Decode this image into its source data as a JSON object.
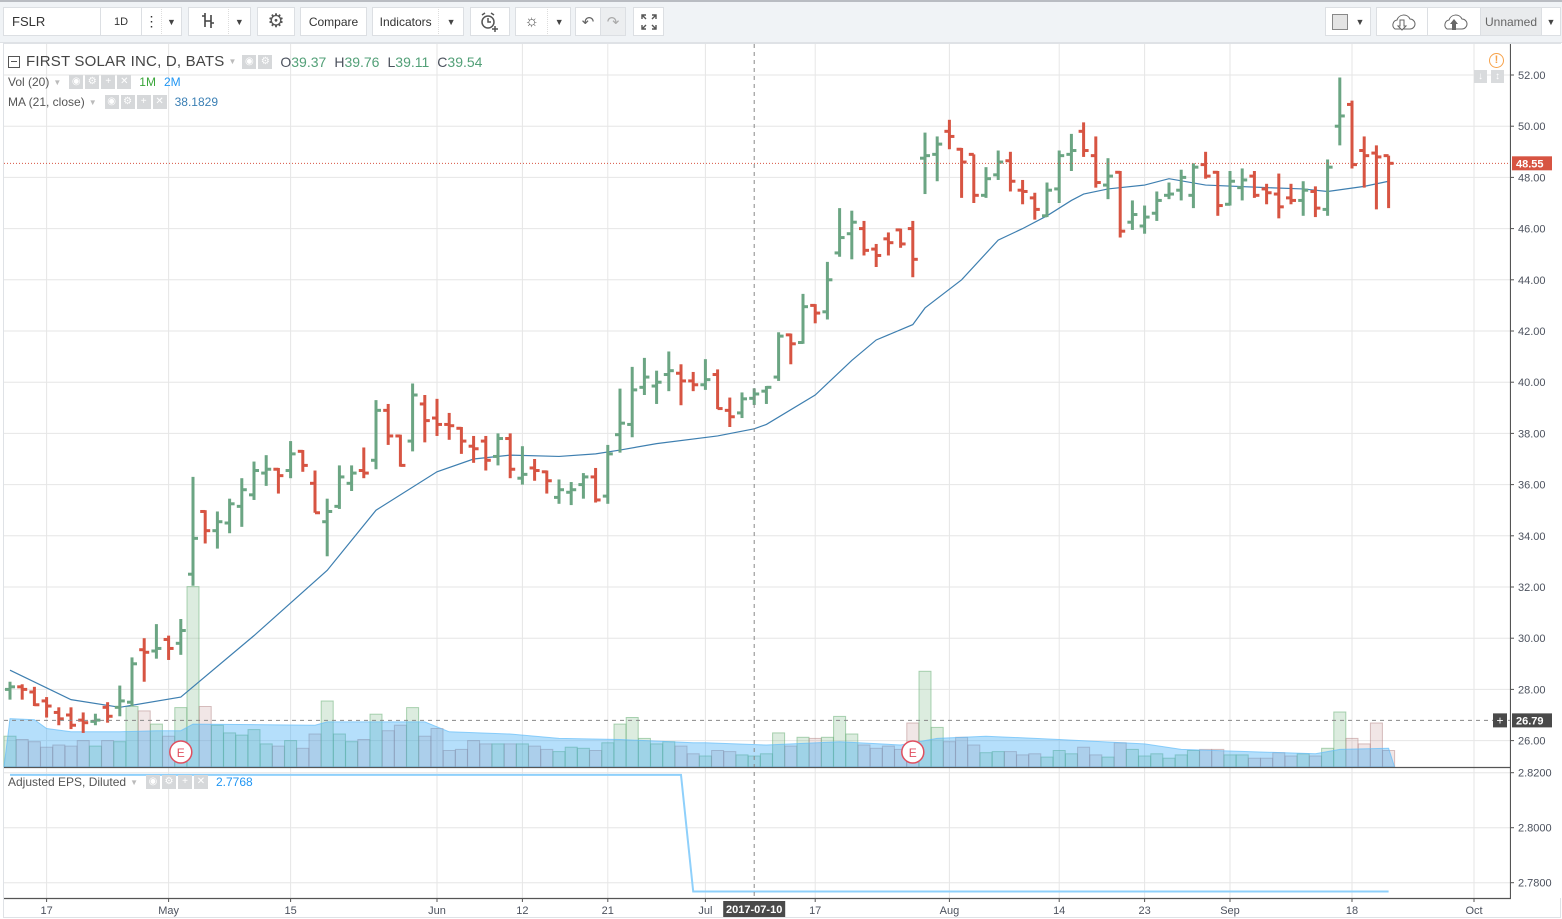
{
  "toolbar": {
    "symbol": "FSLR",
    "interval": "1D",
    "compare_label": "Compare",
    "indicators_label": "Indicators",
    "layout_name": "Unnamed",
    "icons": [
      "more-dots-icon",
      "bar-style-icon",
      "gear-icon",
      "alarm-add-icon",
      "lightbulb-icon",
      "undo-icon",
      "redo-icon",
      "fullscreen-icon",
      "color-square-icon",
      "cloud-download-icon",
      "cloud-upload-icon"
    ]
  },
  "legend": {
    "title": "FIRST SOLAR INC, D, BATS",
    "ohlc": [
      {
        "key": "O",
        "value": "39.37"
      },
      {
        "key": "H",
        "value": "39.76"
      },
      {
        "key": "L",
        "value": "39.11"
      },
      {
        "key": "C",
        "value": "39.54"
      }
    ],
    "volume": {
      "label": "Vol (20)",
      "value": "1M",
      "ma_value": "2M"
    },
    "ma": {
      "label": "MA (21, close)",
      "value": "38.1829"
    },
    "eps": {
      "label": "Adjusted EPS, Diluted",
      "value": "2.7768"
    }
  },
  "colors": {
    "up": "#6ba583",
    "down": "#d75442",
    "ma_line": "#3e7fb0",
    "volume_ma_area": "#58b4f2",
    "eps_line": "#8fd0fb",
    "earnings_marker": "#e04f5f",
    "warning": "#f7a24a"
  },
  "chart_data": {
    "type": "ohlc-bar",
    "symbol": "FSLR",
    "bar_fields": [
      "date",
      "open",
      "high",
      "low",
      "close",
      "volume_millions"
    ],
    "bars": [
      [
        "2017-04-11",
        28.0,
        28.3,
        27.6,
        28.1,
        2.8
      ],
      [
        "2017-04-12",
        28.1,
        28.2,
        27.6,
        28.0,
        2.5
      ],
      [
        "2017-04-13",
        27.9,
        28.1,
        27.35,
        27.4,
        2.3
      ],
      [
        "2017-04-17",
        27.55,
        27.7,
        26.9,
        27.35,
        1.8
      ],
      [
        "2017-04-18",
        27.1,
        27.3,
        26.6,
        26.85,
        2.0
      ],
      [
        "2017-04-19",
        27.0,
        27.3,
        26.45,
        26.6,
        1.9
      ],
      [
        "2017-04-20",
        26.8,
        27.1,
        26.3,
        26.7,
        2.4
      ],
      [
        "2017-04-21",
        26.75,
        27.05,
        26.6,
        26.8,
        1.9
      ],
      [
        "2017-04-24",
        27.3,
        27.5,
        26.7,
        26.95,
        2.4
      ],
      [
        "2017-04-25",
        27.3,
        28.15,
        26.95,
        27.55,
        2.3
      ],
      [
        "2017-04-26",
        27.5,
        29.25,
        27.35,
        29.0,
        5.5
      ],
      [
        "2017-04-27",
        29.55,
        30.0,
        28.3,
        29.45,
        5.1
      ],
      [
        "2017-04-28",
        29.5,
        30.55,
        29.2,
        29.6,
        3.9
      ],
      [
        "2017-05-01",
        29.95,
        30.1,
        29.15,
        29.6,
        2.8
      ],
      [
        "2017-05-02",
        29.8,
        30.75,
        29.35,
        30.3,
        5.4
      ],
      [
        "2017-05-03",
        32.5,
        36.3,
        32.05,
        33.9,
        16.4
      ],
      [
        "2017-05-04",
        34.95,
        35.0,
        33.7,
        34.2,
        5.5
      ],
      [
        "2017-05-05",
        34.2,
        34.95,
        33.5,
        34.55,
        3.8
      ],
      [
        "2017-05-08",
        34.5,
        35.45,
        34.1,
        35.25,
        3.1
      ],
      [
        "2017-05-09",
        35.15,
        36.25,
        34.35,
        35.8,
        2.9
      ],
      [
        "2017-05-10",
        35.6,
        36.9,
        35.4,
        36.55,
        3.4
      ],
      [
        "2017-05-11",
        36.45,
        37.15,
        35.95,
        36.6,
        2.1
      ],
      [
        "2017-05-12",
        36.6,
        36.65,
        35.65,
        36.35,
        1.9
      ],
      [
        "2017-05-15",
        36.55,
        37.7,
        36.25,
        37.2,
        2.4
      ],
      [
        "2017-05-16",
        37.3,
        37.35,
        36.5,
        36.75,
        1.7
      ],
      [
        "2017-05-17",
        36.05,
        36.55,
        34.9,
        34.9,
        3.0
      ],
      [
        "2017-05-18",
        34.55,
        35.45,
        33.2,
        34.95,
        6.0
      ],
      [
        "2017-05-19",
        35.15,
        36.75,
        35.05,
        36.3,
        3.0
      ],
      [
        "2017-05-22",
        36.05,
        36.75,
        35.75,
        36.45,
        2.3
      ],
      [
        "2017-05-23",
        36.55,
        37.45,
        36.25,
        36.45,
        2.5
      ],
      [
        "2017-05-24",
        36.95,
        39.3,
        36.6,
        38.9,
        4.8
      ],
      [
        "2017-05-25",
        38.9,
        39.15,
        37.55,
        37.9,
        3.3
      ],
      [
        "2017-05-26",
        37.9,
        37.95,
        36.7,
        36.75,
        3.8
      ],
      [
        "2017-05-30",
        37.7,
        39.95,
        37.3,
        39.5,
        5.4
      ],
      [
        "2017-05-31",
        39.15,
        39.5,
        37.65,
        38.5,
        2.8
      ],
      [
        "2017-06-01",
        38.6,
        39.35,
        37.9,
        38.35,
        3.5
      ],
      [
        "2017-06-02",
        38.35,
        38.8,
        37.75,
        38.3,
        1.5
      ],
      [
        "2017-06-05",
        38.2,
        38.25,
        37.2,
        37.7,
        1.6
      ],
      [
        "2017-06-06",
        37.5,
        37.9,
        36.85,
        37.4,
        2.4
      ],
      [
        "2017-06-07",
        37.7,
        37.9,
        36.55,
        36.95,
        2.1
      ],
      [
        "2017-06-08",
        37.1,
        38.0,
        36.75,
        37.8,
        2.1
      ],
      [
        "2017-06-09",
        37.8,
        38.0,
        36.25,
        36.6,
        2.1
      ],
      [
        "2017-06-12",
        36.25,
        37.5,
        36.0,
        36.4,
        2.1
      ],
      [
        "2017-06-13",
        36.65,
        37.0,
        36.15,
        36.55,
        1.9
      ],
      [
        "2017-06-14",
        36.5,
        36.55,
        35.65,
        36.15,
        1.6
      ],
      [
        "2017-06-15",
        35.5,
        36.2,
        35.25,
        35.8,
        1.4
      ],
      [
        "2017-06-16",
        35.7,
        36.1,
        35.2,
        35.8,
        1.8
      ],
      [
        "2017-06-19",
        36.0,
        36.45,
        35.45,
        36.3,
        1.7
      ],
      [
        "2017-06-20",
        36.3,
        36.65,
        35.3,
        35.4,
        1.5
      ],
      [
        "2017-06-21",
        35.55,
        37.55,
        35.25,
        37.2,
        2.2
      ],
      [
        "2017-06-22",
        37.95,
        39.75,
        37.25,
        38.4,
        3.9
      ],
      [
        "2017-06-23",
        38.35,
        40.6,
        37.85,
        39.7,
        4.5
      ],
      [
        "2017-06-26",
        39.8,
        40.95,
        39.5,
        40.2,
        2.6
      ],
      [
        "2017-06-27",
        39.85,
        40.45,
        39.15,
        40.0,
        2.1
      ],
      [
        "2017-06-28",
        40.3,
        41.2,
        39.65,
        40.45,
        2.3
      ],
      [
        "2017-06-29",
        40.35,
        40.7,
        39.1,
        40.05,
        1.9
      ],
      [
        "2017-06-30",
        40.05,
        40.4,
        39.65,
        39.9,
        1.2
      ],
      [
        "2017-07-03",
        39.9,
        40.9,
        39.7,
        40.1,
        1.0
      ],
      [
        "2017-07-05",
        40.3,
        40.5,
        38.95,
        38.97,
        1.5
      ],
      [
        "2017-07-06",
        38.9,
        39.4,
        38.25,
        38.65,
        1.4
      ],
      [
        "2017-07-07",
        38.8,
        39.6,
        38.6,
        39.35,
        1.1
      ],
      [
        "2017-07-10",
        39.37,
        39.76,
        39.11,
        39.54,
        1.0
      ],
      [
        "2017-07-11",
        39.65,
        39.85,
        39.15,
        39.8,
        1.2
      ],
      [
        "2017-07-12",
        40.2,
        41.95,
        40.05,
        41.8,
        3.1
      ],
      [
        "2017-07-13",
        41.85,
        41.9,
        40.7,
        41.5,
        1.9
      ],
      [
        "2017-07-14",
        41.55,
        43.45,
        41.5,
        42.95,
        2.7
      ],
      [
        "2017-07-17",
        43.0,
        43.05,
        42.3,
        42.7,
        2.6
      ],
      [
        "2017-07-18",
        42.75,
        44.7,
        42.45,
        44.0,
        2.7
      ],
      [
        "2017-07-19",
        45.05,
        46.8,
        44.9,
        45.65,
        4.6
      ],
      [
        "2017-07-20",
        45.8,
        46.7,
        44.8,
        46.25,
        3.0
      ],
      [
        "2017-07-21",
        46.0,
        46.3,
        44.95,
        45.15,
        2.0
      ],
      [
        "2017-07-24",
        45.2,
        45.4,
        44.5,
        44.95,
        1.7
      ],
      [
        "2017-07-25",
        45.6,
        45.85,
        44.95,
        45.45,
        1.9
      ],
      [
        "2017-07-26",
        45.95,
        46.0,
        45.25,
        45.4,
        1.6
      ],
      [
        "2017-07-27",
        46.0,
        46.3,
        44.1,
        44.8,
        4.0
      ],
      [
        "2017-07-28",
        48.75,
        49.75,
        47.35,
        48.85,
        8.7
      ],
      [
        "2017-07-31",
        48.9,
        49.6,
        47.85,
        49.3,
        3.6
      ],
      [
        "2017-08-01",
        49.8,
        50.25,
        49.1,
        49.6,
        2.3
      ],
      [
        "2017-08-02",
        49.1,
        49.15,
        47.2,
        48.6,
        2.7
      ],
      [
        "2017-08-03",
        48.9,
        48.9,
        47.0,
        47.3,
        2.0
      ],
      [
        "2017-08-04",
        47.3,
        48.4,
        47.2,
        47.95,
        1.3
      ],
      [
        "2017-08-07",
        48.1,
        49.05,
        47.9,
        48.6,
        1.4
      ],
      [
        "2017-08-08",
        48.65,
        49.0,
        47.45,
        47.85,
        1.4
      ],
      [
        "2017-08-09",
        47.5,
        47.9,
        46.95,
        47.45,
        1.1
      ],
      [
        "2017-08-10",
        47.2,
        47.4,
        46.35,
        46.75,
        1.2
      ],
      [
        "2017-08-11",
        46.5,
        47.8,
        46.45,
        47.5,
        0.9
      ],
      [
        "2017-08-14",
        47.55,
        49.05,
        47.0,
        48.85,
        1.5
      ],
      [
        "2017-08-15",
        48.9,
        49.7,
        48.25,
        49.05,
        1.2
      ],
      [
        "2017-08-16",
        49.8,
        50.15,
        48.8,
        49.05,
        1.8
      ],
      [
        "2017-08-17",
        48.85,
        49.6,
        47.6,
        47.8,
        1.1
      ],
      [
        "2017-08-18",
        47.7,
        48.75,
        47.15,
        48.05,
        0.9
      ],
      [
        "2017-08-21",
        48.2,
        48.25,
        45.65,
        45.9,
        2.2
      ],
      [
        "2017-08-22",
        46.25,
        47.1,
        45.95,
        46.55,
        1.6
      ],
      [
        "2017-08-23",
        46.1,
        46.9,
        45.8,
        46.45,
        1.0
      ],
      [
        "2017-08-24",
        46.6,
        47.45,
        46.3,
        47.1,
        1.2
      ],
      [
        "2017-08-25",
        47.3,
        47.8,
        47.15,
        47.35,
        0.8
      ],
      [
        "2017-08-28",
        47.5,
        48.3,
        47.1,
        48.0,
        1.1
      ],
      [
        "2017-08-29",
        47.3,
        48.55,
        46.8,
        48.4,
        1.5
      ],
      [
        "2017-08-30",
        48.5,
        49.0,
        47.95,
        48.05,
        1.6
      ],
      [
        "2017-08-31",
        48.2,
        48.25,
        46.5,
        46.9,
        1.6
      ],
      [
        "2017-09-01",
        46.95,
        48.25,
        46.9,
        47.85,
        1.1
      ],
      [
        "2017-09-05",
        47.6,
        48.35,
        47.1,
        47.9,
        1.1
      ],
      [
        "2017-09-06",
        48.05,
        48.25,
        47.2,
        47.3,
        0.8
      ],
      [
        "2017-09-07",
        47.55,
        47.75,
        46.95,
        47.4,
        0.8
      ],
      [
        "2017-09-08",
        47.35,
        48.15,
        46.4,
        46.85,
        1.3
      ],
      [
        "2017-09-11",
        47.2,
        47.75,
        46.95,
        47.1,
        1.0
      ],
      [
        "2017-09-12",
        47.1,
        47.85,
        46.5,
        47.5,
        1.2
      ],
      [
        "2017-09-13",
        47.45,
        47.65,
        46.45,
        46.8,
        1.0
      ],
      [
        "2017-09-14",
        46.75,
        48.7,
        46.5,
        48.4,
        1.7
      ],
      [
        "2017-09-15",
        50.0,
        51.9,
        49.25,
        50.4,
        5.0
      ],
      [
        "2017-09-18",
        50.85,
        51.0,
        48.35,
        48.5,
        2.6
      ],
      [
        "2017-09-19",
        49.05,
        49.6,
        47.6,
        48.85,
        2.1
      ],
      [
        "2017-09-20",
        48.95,
        49.25,
        46.75,
        48.8,
        4.0
      ],
      [
        "2017-09-21",
        48.85,
        48.85,
        46.8,
        48.55,
        1.5
      ]
    ],
    "ma21": [
      [
        "2017-04-11",
        28.75
      ],
      [
        "2017-04-19",
        27.6
      ],
      [
        "2017-04-25",
        27.3
      ],
      [
        "2017-05-02",
        27.7
      ],
      [
        "2017-05-10",
        30.1
      ],
      [
        "2017-05-18",
        32.65
      ],
      [
        "2017-05-24",
        35.0
      ],
      [
        "2017-06-01",
        36.5
      ],
      [
        "2017-06-06",
        37.0
      ],
      [
        "2017-06-09",
        37.15
      ],
      [
        "2017-06-15",
        37.1
      ],
      [
        "2017-06-20",
        37.2
      ],
      [
        "2017-06-22",
        37.35
      ],
      [
        "2017-06-27",
        37.6
      ],
      [
        "2017-07-05",
        37.9
      ],
      [
        "2017-07-10",
        38.18
      ],
      [
        "2017-07-11",
        38.35
      ],
      [
        "2017-07-17",
        39.5
      ],
      [
        "2017-07-20",
        40.85
      ],
      [
        "2017-07-24",
        41.65
      ],
      [
        "2017-07-27",
        42.25
      ],
      [
        "2017-07-28",
        42.9
      ],
      [
        "2017-08-02",
        44.0
      ],
      [
        "2017-08-07",
        45.55
      ],
      [
        "2017-08-09",
        46.0
      ],
      [
        "2017-08-11",
        46.5
      ],
      [
        "2017-08-15",
        47.1
      ],
      [
        "2017-08-16",
        47.35
      ],
      [
        "2017-08-18",
        47.55
      ],
      [
        "2017-08-23",
        47.7
      ],
      [
        "2017-08-25",
        47.95
      ],
      [
        "2017-08-30",
        47.7
      ],
      [
        "2017-09-07",
        47.6
      ],
      [
        "2017-09-12",
        47.55
      ],
      [
        "2017-09-14",
        47.45
      ],
      [
        "2017-09-19",
        47.65
      ],
      [
        "2017-09-21",
        47.85
      ]
    ],
    "volume_ma20_millions": [
      [
        "2017-04-11",
        4.4
      ],
      [
        "2017-04-13",
        4.3
      ],
      [
        "2017-04-17",
        3.5
      ],
      [
        "2017-04-19",
        3.2
      ],
      [
        "2017-04-25",
        3.2
      ],
      [
        "2017-04-28",
        3.3
      ],
      [
        "2017-05-02",
        3.3
      ],
      [
        "2017-05-03",
        3.9
      ],
      [
        "2017-05-17",
        3.8
      ],
      [
        "2017-05-18",
        4.1
      ],
      [
        "2017-05-26",
        4.1
      ],
      [
        "2017-05-31",
        4.1
      ],
      [
        "2017-06-02",
        3.2
      ],
      [
        "2017-06-09",
        3.0
      ],
      [
        "2017-06-15",
        2.6
      ],
      [
        "2017-06-22",
        2.5
      ],
      [
        "2017-06-30",
        2.2
      ],
      [
        "2017-07-03",
        2.2
      ],
      [
        "2017-07-11",
        2.0
      ],
      [
        "2017-07-19",
        2.3
      ],
      [
        "2017-07-26",
        2.0
      ],
      [
        "2017-07-31",
        2.6
      ],
      [
        "2017-08-04",
        2.8
      ],
      [
        "2017-08-14",
        2.5
      ],
      [
        "2017-08-23",
        2.1
      ],
      [
        "2017-08-28",
        1.6
      ],
      [
        "2017-09-13",
        1.2
      ],
      [
        "2017-09-15",
        1.6
      ],
      [
        "2017-09-21",
        1.7
      ]
    ],
    "eps": [
      [
        "2017-04-11",
        2.8192
      ],
      [
        "2017-06-29",
        2.8192
      ],
      [
        "2017-06-30",
        2.7768
      ],
      [
        "2017-09-21",
        2.7768
      ]
    ],
    "earnings_markers": [
      {
        "date": "2017-05-02",
        "label": "E"
      },
      {
        "date": "2017-07-27",
        "label": "E"
      }
    ],
    "price_axis": {
      "range": [
        25.0,
        53.5
      ],
      "ticks": [
        "26.00",
        "28.00",
        "30.00",
        "32.00",
        "34.00",
        "36.00",
        "38.00",
        "40.00",
        "42.00",
        "44.00",
        "46.00",
        "48.00",
        "50.00",
        "52.00"
      ]
    },
    "eps_axis": {
      "ticks": [
        "2.8200",
        "2.8000",
        "2.7800"
      ]
    },
    "time_axis": [
      {
        "label": "17",
        "date": "2017-04-17"
      },
      {
        "label": "May",
        "date": "2017-05-01"
      },
      {
        "label": "15",
        "date": "2017-05-15"
      },
      {
        "label": "Jun",
        "date": "2017-06-01"
      },
      {
        "label": "12",
        "date": "2017-06-12"
      },
      {
        "label": "21",
        "date": "2017-06-21"
      },
      {
        "label": "Jul",
        "date": "2017-07-03"
      },
      {
        "label": "17",
        "date": "2017-07-17"
      },
      {
        "label": "Aug",
        "date": "2017-08-01"
      },
      {
        "label": "14",
        "date": "2017-08-14"
      },
      {
        "label": "23",
        "date": "2017-08-23"
      },
      {
        "label": "Sep",
        "date": "2017-09-01"
      },
      {
        "label": "18",
        "date": "2017-09-18"
      },
      {
        "label": "Oct",
        "date": "2017-10-02"
      }
    ],
    "last_price": "48.55",
    "crosshair": {
      "date_label": "2017-07-10",
      "price_label": "26.79",
      "price": 26.79
    },
    "grid": true
  }
}
